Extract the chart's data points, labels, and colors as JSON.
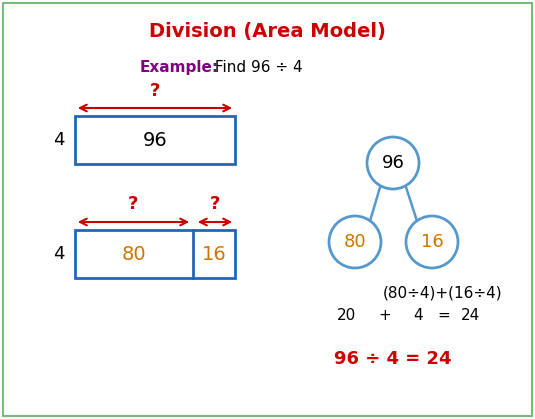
{
  "title": "Division (Area Model)",
  "title_color": "#cc0000",
  "example_label": "Example:",
  "example_label_color": "#800080",
  "example_text": " Find 96 ÷ 4",
  "example_text_color": "#000000",
  "background_color": "#ffffff",
  "border_color": "#77bb77",
  "box_color": "#2266bb",
  "num_color": "#cc7700",
  "tree_circle_color": "#5599cc",
  "formula_line": "(80÷4)+(16÷4)",
  "result_20": "20",
  "result_plus": "+",
  "result_4": "4",
  "result_eq": "=",
  "result_24": "24",
  "final_line": "96 ÷ 4 = 24",
  "final_color": "#cc0000",
  "arrow_color": "#cc0000"
}
